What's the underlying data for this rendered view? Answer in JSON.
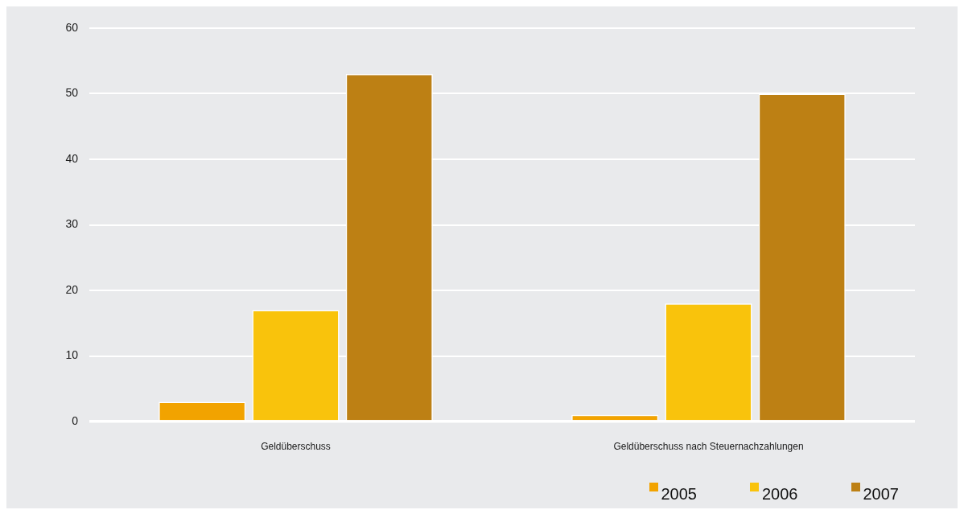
{
  "chart_data": {
    "type": "bar",
    "categories": [
      "Geldüberschuss",
      "Geldüberschuss nach Steuernachzahlungen"
    ],
    "series": [
      {
        "name": "2005",
        "color": "#f2a300",
        "values": [
          3,
          1
        ]
      },
      {
        "name": "2006",
        "color": "#f9c30c",
        "values": [
          17,
          18
        ]
      },
      {
        "name": "2007",
        "color": "#bd8014",
        "values": [
          53,
          50
        ]
      }
    ],
    "ylim": [
      0,
      60
    ],
    "yticks": [
      0,
      10,
      20,
      30,
      40,
      50,
      60
    ],
    "grid": "y",
    "legend": "bottom right"
  }
}
